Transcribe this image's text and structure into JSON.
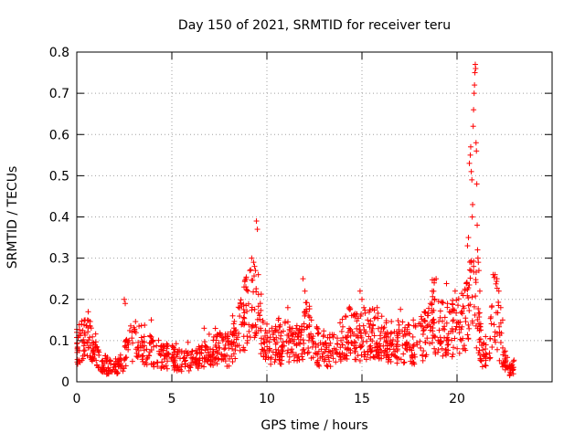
{
  "chart_data": {
    "type": "scatter",
    "title": "Day 150 of 2021, SRMTID for receiver teru",
    "xlabel": "GPS time / hours",
    "ylabel": "SRMTID / TECUs",
    "xlim": [
      0,
      25
    ],
    "ylim": [
      0,
      0.8
    ],
    "xticks": [
      "0",
      "5",
      "10",
      "15",
      "20"
    ],
    "yticks": [
      "0",
      "0.1",
      "0.2",
      "0.3",
      "0.4",
      "0.5",
      "0.6",
      "0.7",
      "0.8"
    ],
    "grid": true,
    "marker": "+",
    "color": "#ff0000",
    "profile": [
      [
        0.0,
        0.09
      ],
      [
        0.3,
        0.1
      ],
      [
        0.7,
        0.1
      ],
      [
        1.0,
        0.07
      ],
      [
        1.3,
        0.05
      ],
      [
        1.6,
        0.04
      ],
      [
        2.0,
        0.035
      ],
      [
        2.3,
        0.04
      ],
      [
        2.6,
        0.07
      ],
      [
        3.0,
        0.1
      ],
      [
        3.5,
        0.09
      ],
      [
        4.0,
        0.075
      ],
      [
        4.5,
        0.07
      ],
      [
        5.0,
        0.06
      ],
      [
        5.5,
        0.05
      ],
      [
        6.0,
        0.05
      ],
      [
        6.5,
        0.06
      ],
      [
        7.0,
        0.08
      ],
      [
        7.5,
        0.08
      ],
      [
        8.0,
        0.08
      ],
      [
        8.3,
        0.1
      ],
      [
        8.6,
        0.14
      ],
      [
        8.9,
        0.17
      ],
      [
        9.2,
        0.2
      ],
      [
        9.5,
        0.16
      ],
      [
        9.8,
        0.1
      ],
      [
        10.2,
        0.08
      ],
      [
        10.6,
        0.09
      ],
      [
        11.0,
        0.1
      ],
      [
        11.4,
        0.09
      ],
      [
        11.8,
        0.1
      ],
      [
        12.1,
        0.14
      ],
      [
        12.4,
        0.1
      ],
      [
        12.8,
        0.08
      ],
      [
        13.2,
        0.08
      ],
      [
        13.6,
        0.08
      ],
      [
        14.0,
        0.11
      ],
      [
        14.4,
        0.13
      ],
      [
        14.8,
        0.11
      ],
      [
        15.2,
        0.12
      ],
      [
        15.6,
        0.12
      ],
      [
        16.0,
        0.11
      ],
      [
        16.4,
        0.1
      ],
      [
        16.8,
        0.09
      ],
      [
        17.2,
        0.1
      ],
      [
        17.6,
        0.09
      ],
      [
        18.0,
        0.1
      ],
      [
        18.4,
        0.12
      ],
      [
        18.8,
        0.15
      ],
      [
        19.2,
        0.13
      ],
      [
        19.6,
        0.13
      ],
      [
        20.0,
        0.14
      ],
      [
        20.4,
        0.15
      ],
      [
        20.6,
        0.2
      ],
      [
        20.8,
        0.25
      ],
      [
        21.0,
        0.18
      ],
      [
        21.3,
        0.08
      ],
      [
        21.6,
        0.07
      ],
      [
        21.8,
        0.12
      ],
      [
        22.0,
        0.2
      ],
      [
        22.2,
        0.12
      ],
      [
        22.5,
        0.06
      ],
      [
        22.8,
        0.03
      ],
      [
        23.0,
        0.04
      ]
    ],
    "peaks": [
      [
        0.0,
        0.12
      ],
      [
        0.6,
        0.17
      ],
      [
        2.5,
        0.2
      ],
      [
        2.55,
        0.19
      ],
      [
        6.7,
        0.13
      ],
      [
        8.2,
        0.16
      ],
      [
        8.6,
        0.19
      ],
      [
        8.8,
        0.23
      ],
      [
        8.9,
        0.25
      ],
      [
        9.0,
        0.22
      ],
      [
        9.1,
        0.27
      ],
      [
        9.2,
        0.3
      ],
      [
        9.3,
        0.29
      ],
      [
        9.35,
        0.28
      ],
      [
        9.4,
        0.27
      ],
      [
        9.45,
        0.39
      ],
      [
        9.5,
        0.37
      ],
      [
        9.55,
        0.26
      ],
      [
        10.0,
        0.14
      ],
      [
        10.6,
        0.15
      ],
      [
        11.1,
        0.18
      ],
      [
        11.9,
        0.25
      ],
      [
        12.0,
        0.22
      ],
      [
        12.1,
        0.17
      ],
      [
        12.2,
        0.16
      ],
      [
        14.9,
        0.22
      ],
      [
        15.0,
        0.2
      ],
      [
        15.1,
        0.18
      ],
      [
        15.3,
        0.15
      ],
      [
        15.8,
        0.18
      ],
      [
        17.7,
        0.15
      ],
      [
        18.6,
        0.19
      ],
      [
        18.7,
        0.22
      ],
      [
        18.8,
        0.24
      ],
      [
        18.9,
        0.25
      ],
      [
        19.5,
        0.19
      ],
      [
        19.6,
        0.17
      ],
      [
        19.9,
        0.22
      ],
      [
        20.5,
        0.24
      ],
      [
        20.55,
        0.33
      ],
      [
        20.6,
        0.35
      ],
      [
        20.65,
        0.53
      ],
      [
        20.7,
        0.55
      ],
      [
        20.72,
        0.57
      ],
      [
        20.75,
        0.51
      ],
      [
        20.78,
        0.49
      ],
      [
        20.8,
        0.4
      ],
      [
        20.82,
        0.43
      ],
      [
        20.85,
        0.62
      ],
      [
        20.87,
        0.66
      ],
      [
        20.9,
        0.7
      ],
      [
        20.92,
        0.72
      ],
      [
        20.94,
        0.75
      ],
      [
        20.96,
        0.77
      ],
      [
        20.98,
        0.76
      ],
      [
        21.0,
        0.58
      ],
      [
        21.02,
        0.56
      ],
      [
        21.04,
        0.48
      ],
      [
        21.06,
        0.38
      ],
      [
        21.08,
        0.32
      ],
      [
        21.1,
        0.3
      ],
      [
        21.12,
        0.29
      ],
      [
        21.15,
        0.27
      ],
      [
        21.2,
        0.22
      ],
      [
        21.9,
        0.26
      ],
      [
        22.0,
        0.26
      ],
      [
        22.1,
        0.25
      ],
      [
        22.2,
        0.22
      ],
      [
        22.3,
        0.18
      ],
      [
        22.4,
        0.15
      ]
    ],
    "point_count": 1400
  }
}
